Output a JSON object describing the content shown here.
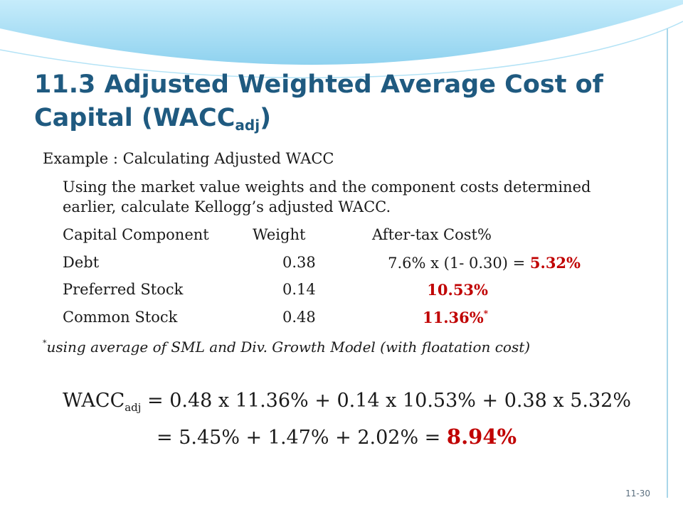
{
  "title": {
    "main": "11.3 Adjusted Weighted Average Cost of Capital (WACC",
    "sub": "adj",
    "end": ")"
  },
  "example_heading": "Example : Calculating Adjusted WACC",
  "instruction": "Using the market value weights and the component costs determined earlier, calculate Kellogg’s adjusted WACC.",
  "table": {
    "headers": {
      "component": "Capital Component",
      "weight": "Weight",
      "cost": "After-tax Cost%"
    },
    "rows": [
      {
        "component": "Debt",
        "weight": "0.38",
        "calc": "7.6% x (1- 0.30) = ",
        "cost": "5.32%",
        "mark": ""
      },
      {
        "component": "Preferred Stock",
        "weight": "0.14",
        "calc": "",
        "cost": "10.53%",
        "mark": ""
      },
      {
        "component": "Common Stock",
        "weight": "0.48",
        "calc": "",
        "cost": "11.36%",
        "mark": "*"
      }
    ]
  },
  "footnote": {
    "mark": "*",
    "text": "using average of SML and Div. Growth Model (with floatation cost)"
  },
  "formula": {
    "lhs": "WACC",
    "lhs_sub": "adj",
    "line1": " = 0.48 x 11.36%  + 0.14 x 10.53% + 0.38 x 5.32%",
    "line2": "= 5.45% + 1.47% + 2.02% = ",
    "result": "8.94%"
  },
  "slide_number": "11-30",
  "colors": {
    "title": "#1f5a80",
    "highlight": "#c00000",
    "wave": "#9fdcf5"
  }
}
